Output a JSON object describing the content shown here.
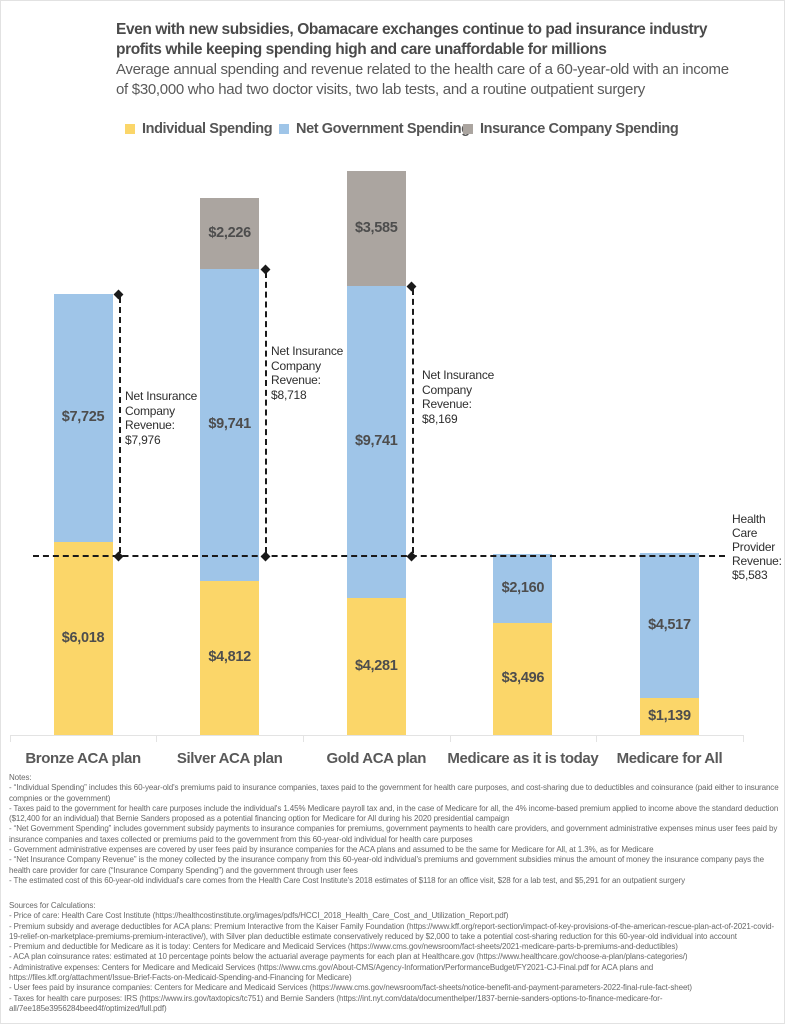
{
  "header": {
    "title_lines": [
      "Even with new subsidies, Obamacare exchanges continue to pad insurance industry",
      "profits while keeping spending high and care unaffordable for millions"
    ],
    "subtitle_lines": [
      "Average annual spending and revenue related to the health care of a 60-year-old with an income",
      "of $30,000 who had two doctor visits, two lab tests, and a routine outpatient surgery"
    ]
  },
  "legend": {
    "items": [
      {
        "label": "Individual Spending",
        "color": "#FBD669"
      },
      {
        "label": "Net Government Spending",
        "color": "#9FC5E8"
      },
      {
        "label": "Insurance Company Spending",
        "color": "#ABA5A0"
      }
    ]
  },
  "chart_data": {
    "type": "bar",
    "stacked": true,
    "grid": false,
    "legend_position": "top",
    "categories": [
      "Bronze ACA plan",
      "Silver ACA plan",
      "Gold ACA plan",
      "Medicare as it is today",
      "Medicare for All"
    ],
    "series": [
      {
        "name": "Individual Spending",
        "color": "#FBD669",
        "values": [
          6018,
          4812,
          4281,
          3496,
          1139
        ]
      },
      {
        "name": "Net Government Spending",
        "color": "#9FC5E8",
        "values": [
          7725,
          9741,
          9741,
          2160,
          4517
        ]
      },
      {
        "name": "Insurance Company Spending",
        "color": "#ABA5A0",
        "values": [
          0,
          2226,
          3585,
          0,
          0
        ]
      }
    ],
    "value_labels": [
      [
        "$6,018",
        "$7,725",
        ""
      ],
      [
        "$4,812",
        "$9,741",
        "$2,226"
      ],
      [
        "$4,281",
        "$9,741",
        "$3,585"
      ],
      [
        "$3,496",
        "$2,160",
        ""
      ],
      [
        "$1,139",
        "$4,517",
        ""
      ]
    ],
    "ylim": [
      0,
      17607
    ],
    "annotations": {
      "net_insurance_revenue": [
        {
          "plan": "Bronze ACA plan",
          "value": 7976,
          "lines": [
            "Net Insurance",
            "Company",
            "Revenue:",
            "$7,976"
          ]
        },
        {
          "plan": "Silver ACA plan",
          "value": 8718,
          "lines": [
            "Net Insurance",
            "Company",
            "Revenue:",
            "$8,718"
          ]
        },
        {
          "plan": "Gold ACA plan",
          "value": 8169,
          "lines": [
            "Net Insurance",
            "Company",
            "Revenue:",
            "$8,169"
          ]
        }
      ],
      "provider_line": {
        "value": 5583,
        "lines": [
          "Health",
          "Care",
          "Provider",
          "Revenue:",
          "$5,583"
        ]
      }
    }
  },
  "notes": {
    "heading": "Notes:",
    "items": [
      "- “Individual Spending” includes this 60-year-old's premiums paid to insurance companies, taxes paid to the government for health care purposes, and cost-sharing due to deductibles and coinsurance (paid either to insurance compnies or the government)",
      "- Taxes paid to the government for health care purposes include the individual's 1.45% Medicare payroll tax and, in the case of Medicare for all, the 4% income-based premium applied to income above the standard deduction ($12,400 for an individual) that Bernie Sanders proposed as a potential financing option for Medicare for All during his 2020 presidential campaign",
      "- “Net Government Spending” includes government subsidy payments to insurance companies for premiums, government payments to health care providers, and government administrative expenses minus user fees paid by insurance companies and taxes collected or premiums paid to the government from this 60-year-old individual for health care purposes",
      "- Government administrative expenses are covered by user fees paid by insurance companies for the ACA plans and assumed to be the same for Medicare for All, at 1.3%, as for Medicare",
      "- “Net Insurance Company Revenue” is the money collected by the insurance company from this 60-year-old individual's premiums and government subsidies minus the amount of money the insurance company pays the health care provider for care (“Insurance Company Spending”) and the government through user fees",
      "- The estimated cost of this 60-year-old individual's care comes from the Health Care Cost Institute's 2018 estimates of $118 for an office visit, $28 for a lab test, and $5,291 for an outpatient surgery"
    ]
  },
  "sources": {
    "heading": "Sources for Calculations:",
    "items": [
      "- Price of care: Health Care Cost Institute (https://healthcostinstitute.org/images/pdfs/HCCI_2018_Health_Care_Cost_and_Utilization_Report.pdf)",
      "- Premium subsidy and average deductibles for ACA plans: Premium Interactive from the Kaiser Family Foundation (https://www.kff.org/report-section/impact-of-key-provisions-of-the-american-rescue-plan-act-of-2021-covid-19-relief-on-marketplace-premiums-premium-interactive/), with Silver plan deductible estimate conservatively reduced by $2,000 to take a potential cost-sharing reduction for this 60-year-old individual into account",
      "- Premium and deductible for Medicare as it is today: Centers for Medicare and Medicaid Services (https://www.cms.gov/newsroom/fact-sheets/2021-medicare-parts-b-premiums-and-deductibles)",
      "- ACA plan coinsurance rates: estimated at 10 percentage points below the actuarial average payments for each plan at Healthcare.gov (https://www.healthcare.gov/choose-a-plan/plans-categories/)",
      "- Administrative expenses: Centers for Medicare and Medicaid Services (https://www.cms.gov/About-CMS/Agency-Information/PerformanceBudget/FY2021-CJ-Final.pdf for ACA plans and https://files.kff.org/attachment/Issue-Brief-Facts-on-Medicaid-Spending-and-Financing for Medicare)",
      "- User fees paid by insurance companies: Centers for Medicare and Medicaid Services (https://www.cms.gov/newsroom/fact-sheets/notice-benefit-and-payment-parameters-2022-final-rule-fact-sheet)",
      "- Taxes for health care purposes: IRS (https://www.irs.gov/taxtopics/tc751) and Bernie Sanders (https://int.nyt.com/data/documenthelper/1837-bernie-sanders-options-to-finance-medicare-for-all/7ee185e3956284beed4f/optimized/full.pdf)"
    ]
  }
}
